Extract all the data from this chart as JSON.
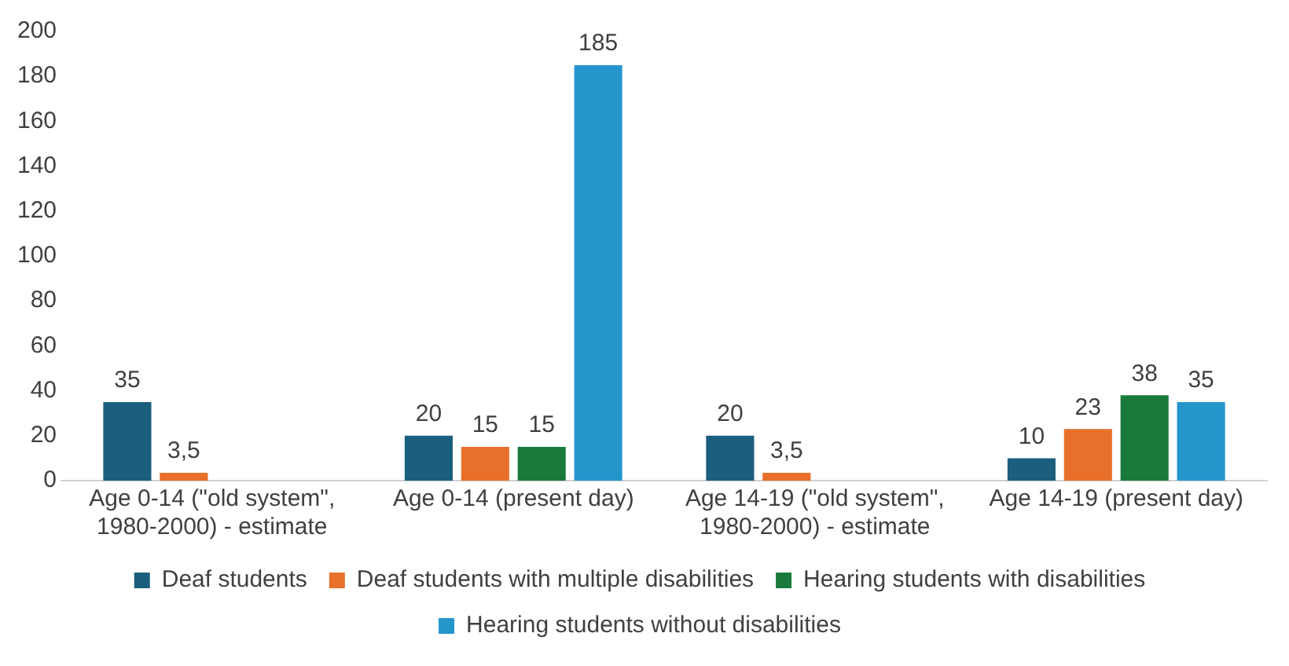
{
  "chart_data": {
    "type": "bar",
    "categories": [
      "Age 0-14 (\"old system\", 1980-2000) - estimate",
      "Age 0-14 (present day)",
      "Age 14-19 (\"old system\", 1980-2000) - estimate",
      "Age 14-19 (present day)"
    ],
    "series": [
      {
        "name": "Deaf students",
        "color": "#1b5e7e",
        "values": [
          35,
          20,
          20,
          10
        ],
        "value_labels": [
          "35",
          "20",
          "20",
          "10"
        ]
      },
      {
        "name": "Deaf students with multiple disabilities",
        "color": "#e8702a",
        "values": [
          3.5,
          15,
          3.5,
          23
        ],
        "value_labels": [
          "3,5",
          "15",
          "3,5",
          "23"
        ]
      },
      {
        "name": "Hearing students with disabilities",
        "color": "#1a7a3c",
        "values": [
          null,
          15,
          null,
          38
        ],
        "value_labels": [
          null,
          "15",
          null,
          "38"
        ]
      },
      {
        "name": "Hearing students without disabilities",
        "color": "#2596cc",
        "values": [
          null,
          185,
          null,
          35
        ],
        "value_labels": [
          null,
          "185",
          null,
          "35"
        ]
      }
    ],
    "ylim": [
      0,
      200
    ],
    "yticks": [
      0,
      20,
      40,
      60,
      80,
      100,
      120,
      140,
      160,
      180,
      200
    ],
    "grid": false,
    "legend": "bottom"
  }
}
